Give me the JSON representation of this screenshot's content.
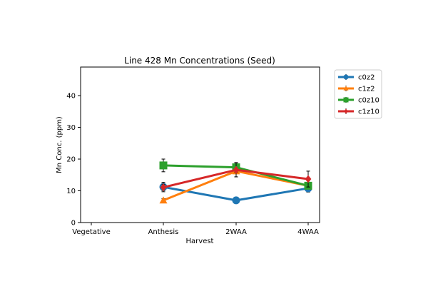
{
  "chart_data": {
    "type": "line",
    "title": "Line 428 Mn Concentrations (Seed)",
    "xlabel": "Harvest",
    "ylabel": "Mn Conc. (ppm)",
    "categories": [
      "Vegetative",
      "Anthesis",
      "2WAA",
      "4WAA"
    ],
    "ylim": [
      0,
      49
    ],
    "yticks": [
      0,
      10,
      20,
      30,
      40
    ],
    "grid": false,
    "legend_position": "outside top-right",
    "series": [
      {
        "name": "c0z2",
        "color": "#1f77b4",
        "marker": "circle",
        "values": [
          null,
          11.2,
          7.0,
          10.8
        ],
        "errors": [
          null,
          1.5,
          0.8,
          1.2
        ]
      },
      {
        "name": "c1z2",
        "color": "#ff7f0e",
        "marker": "triangle",
        "values": [
          null,
          7.0,
          16.2,
          11.6
        ],
        "errors": [
          null,
          0.5,
          1.8,
          1.0
        ]
      },
      {
        "name": "c0z10",
        "color": "#2ca02c",
        "marker": "square",
        "values": [
          null,
          18.0,
          17.4,
          11.6
        ],
        "errors": [
          null,
          2.0,
          1.5,
          1.0
        ]
      },
      {
        "name": "c1z10",
        "color": "#d62728",
        "marker": "diamond",
        "values": [
          null,
          11.1,
          16.6,
          13.7
        ],
        "errors": [
          null,
          1.0,
          2.2,
          2.5
        ]
      }
    ]
  }
}
